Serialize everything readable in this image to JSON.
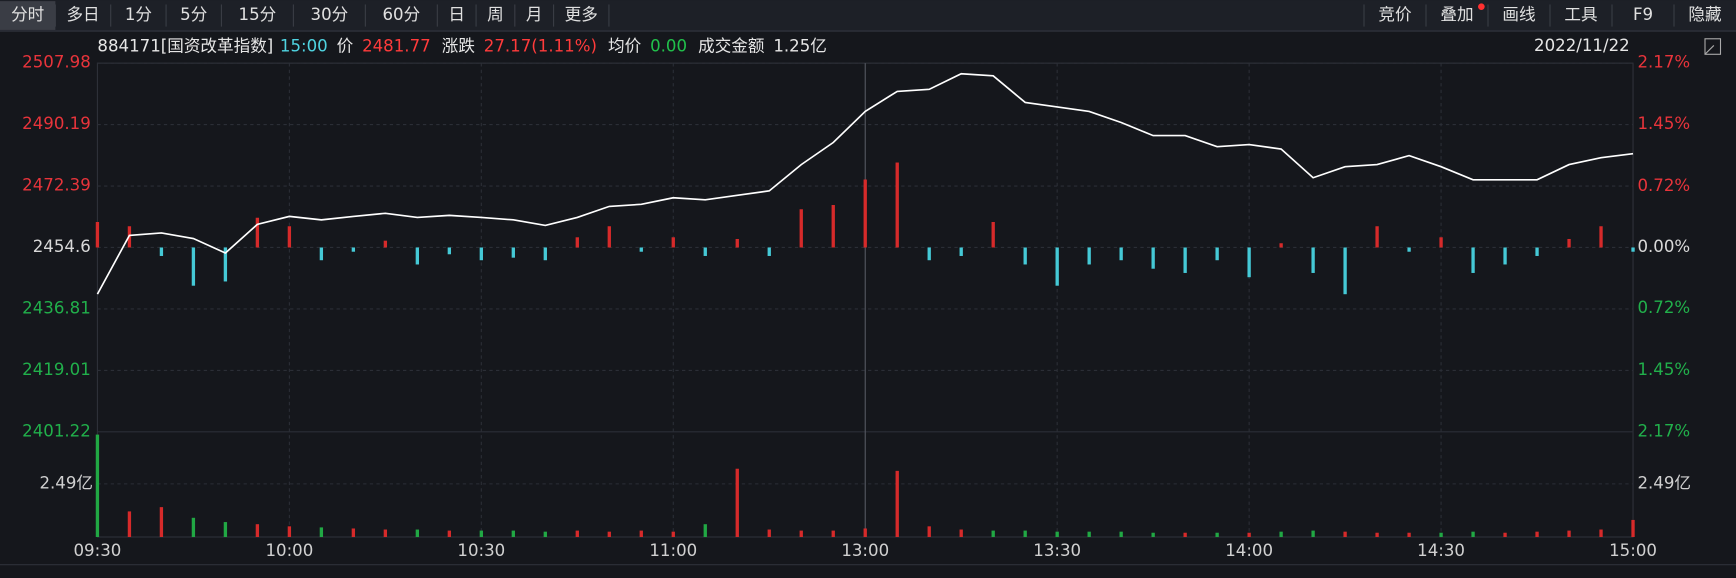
{
  "toolbar": {
    "left": [
      "分时",
      "多日",
      "1分",
      "5分",
      "15分",
      "30分",
      "60分",
      "日",
      "周",
      "月",
      "更多"
    ],
    "right": [
      "竞价",
      "叠加",
      "画线",
      "工具",
      "F9",
      "隐藏"
    ]
  },
  "info": {
    "code": "884171[国资改革指数]",
    "time": "15:00",
    "price_label": "价",
    "price": "2481.77",
    "change_label": "涨跌",
    "change": "27.17(1.11%)",
    "avg_label": "均价",
    "avg": "0.00",
    "amount_label": "成交金额",
    "amount": "1.25亿",
    "date": "2022/11/22"
  },
  "chart_data": [
    {
      "type": "line",
      "color": "#ffffff",
      "x": [
        "09:30",
        "09:35",
        "09:40",
        "09:45",
        "09:50",
        "09:55",
        "10:00",
        "10:05",
        "10:10",
        "10:15",
        "10:20",
        "10:25",
        "10:30",
        "10:35",
        "10:40",
        "10:45",
        "10:50",
        "10:55",
        "11:00",
        "11:05",
        "11:10",
        "11:15",
        "11:20",
        "11:25",
        "11:30",
        "13:05",
        "13:10",
        "13:15",
        "13:20",
        "13:25",
        "13:30",
        "13:35",
        "13:40",
        "13:45",
        "13:50",
        "13:55",
        "14:00",
        "14:05",
        "14:10",
        "14:15",
        "14:20",
        "14:25",
        "14:30",
        "14:35",
        "14:40",
        "14:45",
        "14:50",
        "14:55",
        "15:00"
      ],
      "values": [
        2441.1,
        2458.1,
        2458.8,
        2457.2,
        2453.0,
        2461.3,
        2463.6,
        2462.6,
        2463.6,
        2464.5,
        2463.3,
        2463.9,
        2463.3,
        2462.6,
        2461.0,
        2463.3,
        2466.5,
        2467.1,
        2469.0,
        2468.4,
        2469.7,
        2471.0,
        2478.6,
        2485.0,
        2494.0,
        2499.8,
        2500.4,
        2504.9,
        2504.3,
        2496.6,
        2495.3,
        2494.0,
        2490.8,
        2487.0,
        2487.0,
        2483.8,
        2484.4,
        2483.1,
        2474.8,
        2478.0,
        2478.6,
        2481.2,
        2478.0,
        2474.2,
        2474.2,
        2474.2,
        2478.6,
        2480.6,
        2481.77
      ],
      "ylim": [
        2401.22,
        2507.98
      ],
      "yticks": [
        2507.98,
        2490.19,
        2472.39,
        2454.6,
        2436.81,
        2419.01,
        2401.22
      ],
      "y2lim": [
        -2.17,
        2.17
      ],
      "y2ticks": [
        {
          "value": 2.17,
          "label": "2.17%"
        },
        {
          "value": 1.45,
          "label": "1.45%"
        },
        {
          "value": 0.72,
          "label": "0.72%"
        },
        {
          "value": 0,
          "label": "0.00%"
        },
        {
          "value": -0.72,
          "label": "0.72%"
        },
        {
          "value": -1.45,
          "label": "1.45%"
        },
        {
          "value": -2.17,
          "label": "2.17%"
        }
      ],
      "up_color": "#e8343b",
      "down_color": "#21b04b",
      "flat_color": "#d8d8d8"
    },
    {
      "type": "bar",
      "axis": "y2",
      "up_color": "#d62a2a",
      "down_color": "#45c9d6",
      "values": [
        0.3,
        0.25,
        -0.1,
        -0.45,
        -0.4,
        0.35,
        0.25,
        -0.15,
        -0.05,
        0.08,
        -0.2,
        -0.08,
        -0.15,
        -0.12,
        -0.15,
        0.12,
        0.25,
        -0.05,
        0.12,
        -0.1,
        0.1,
        -0.1,
        0.45,
        0.5,
        0.8,
        1.0,
        -0.15,
        -0.1,
        0.3,
        -0.2,
        -0.45,
        -0.2,
        -0.15,
        -0.25,
        -0.3,
        -0.15,
        -0.35,
        0.05,
        -0.3,
        -0.55,
        0.25,
        -0.05,
        0.12,
        -0.3,
        -0.2,
        -0.1,
        0.1,
        0.25,
        -0.05
      ]
    },
    {
      "type": "volume",
      "up_color": "#d62a2a",
      "down_color": "#21a844",
      "values": [
        4.8,
        1.2,
        1.4,
        0.9,
        0.7,
        0.6,
        0.5,
        0.45,
        0.4,
        0.35,
        0.35,
        0.3,
        0.3,
        0.3,
        0.25,
        0.3,
        0.25,
        0.3,
        0.25,
        0.6,
        3.2,
        0.35,
        0.3,
        0.3,
        0.4,
        3.1,
        0.5,
        0.35,
        0.3,
        0.3,
        0.25,
        0.25,
        0.25,
        0.2,
        0.2,
        0.2,
        0.2,
        0.25,
        0.3,
        0.25,
        0.2,
        0.2,
        0.2,
        0.25,
        0.2,
        0.25,
        0.3,
        0.35,
        0.8
      ],
      "ylim": [
        0,
        4.93
      ],
      "yticks": [
        {
          "value": 2.49,
          "label": "2.49亿"
        }
      ],
      "xticks": [
        "09:30",
        "10:00",
        "10:30",
        "11:00",
        "13:00",
        "13:30",
        "14:00",
        "14:30",
        "15:00"
      ]
    }
  ]
}
